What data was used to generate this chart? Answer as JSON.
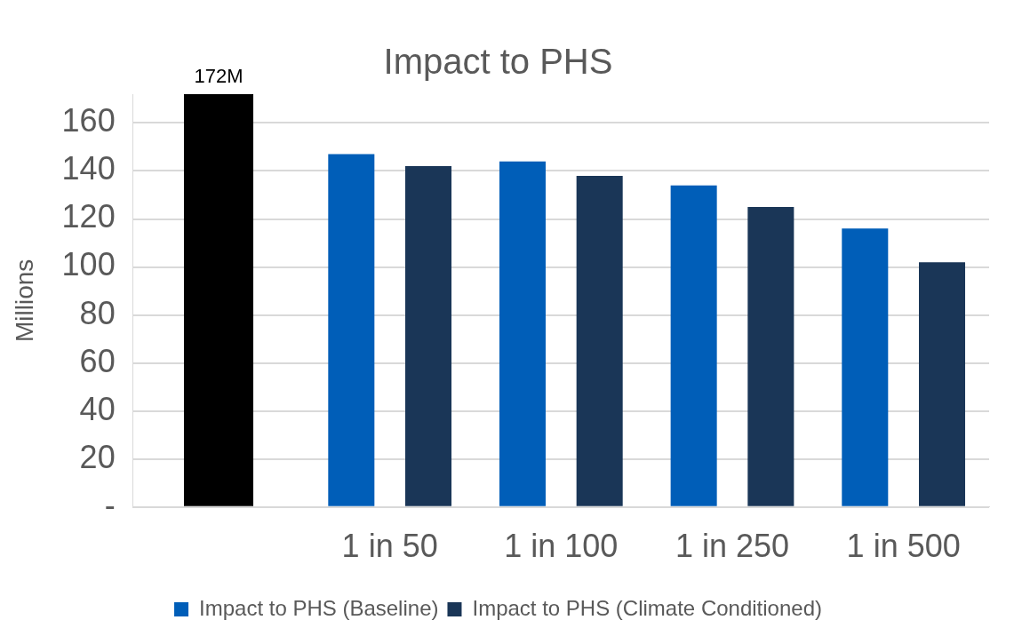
{
  "chart_data": {
    "type": "bar",
    "title": "Impact to PHS",
    "ylabel": "Millions",
    "categories": [
      null,
      "1 in 50",
      "1 in 100",
      "1 in 250",
      "1 in 500"
    ],
    "series": [
      {
        "color": "#000000",
        "values": [
          172,
          null,
          null,
          null,
          null
        ],
        "value_labels": [
          "172M",
          null,
          null,
          null,
          null
        ]
      },
      {
        "name": "Impact to PHS (Baseline)",
        "color": "#005eb8",
        "values": [
          null,
          147,
          144,
          134,
          116
        ]
      },
      {
        "name": "Impact to PHS (Climate Conditioned)",
        "color": "#1a3657",
        "values": [
          null,
          142,
          138,
          125,
          102
        ]
      }
    ],
    "ylim": [
      0,
      172
    ],
    "yticks": [
      {
        "value": 0,
        "label": "-"
      },
      20,
      40,
      60,
      80,
      100,
      120,
      140,
      160
    ],
    "grid": "y",
    "legend": "bottom"
  }
}
